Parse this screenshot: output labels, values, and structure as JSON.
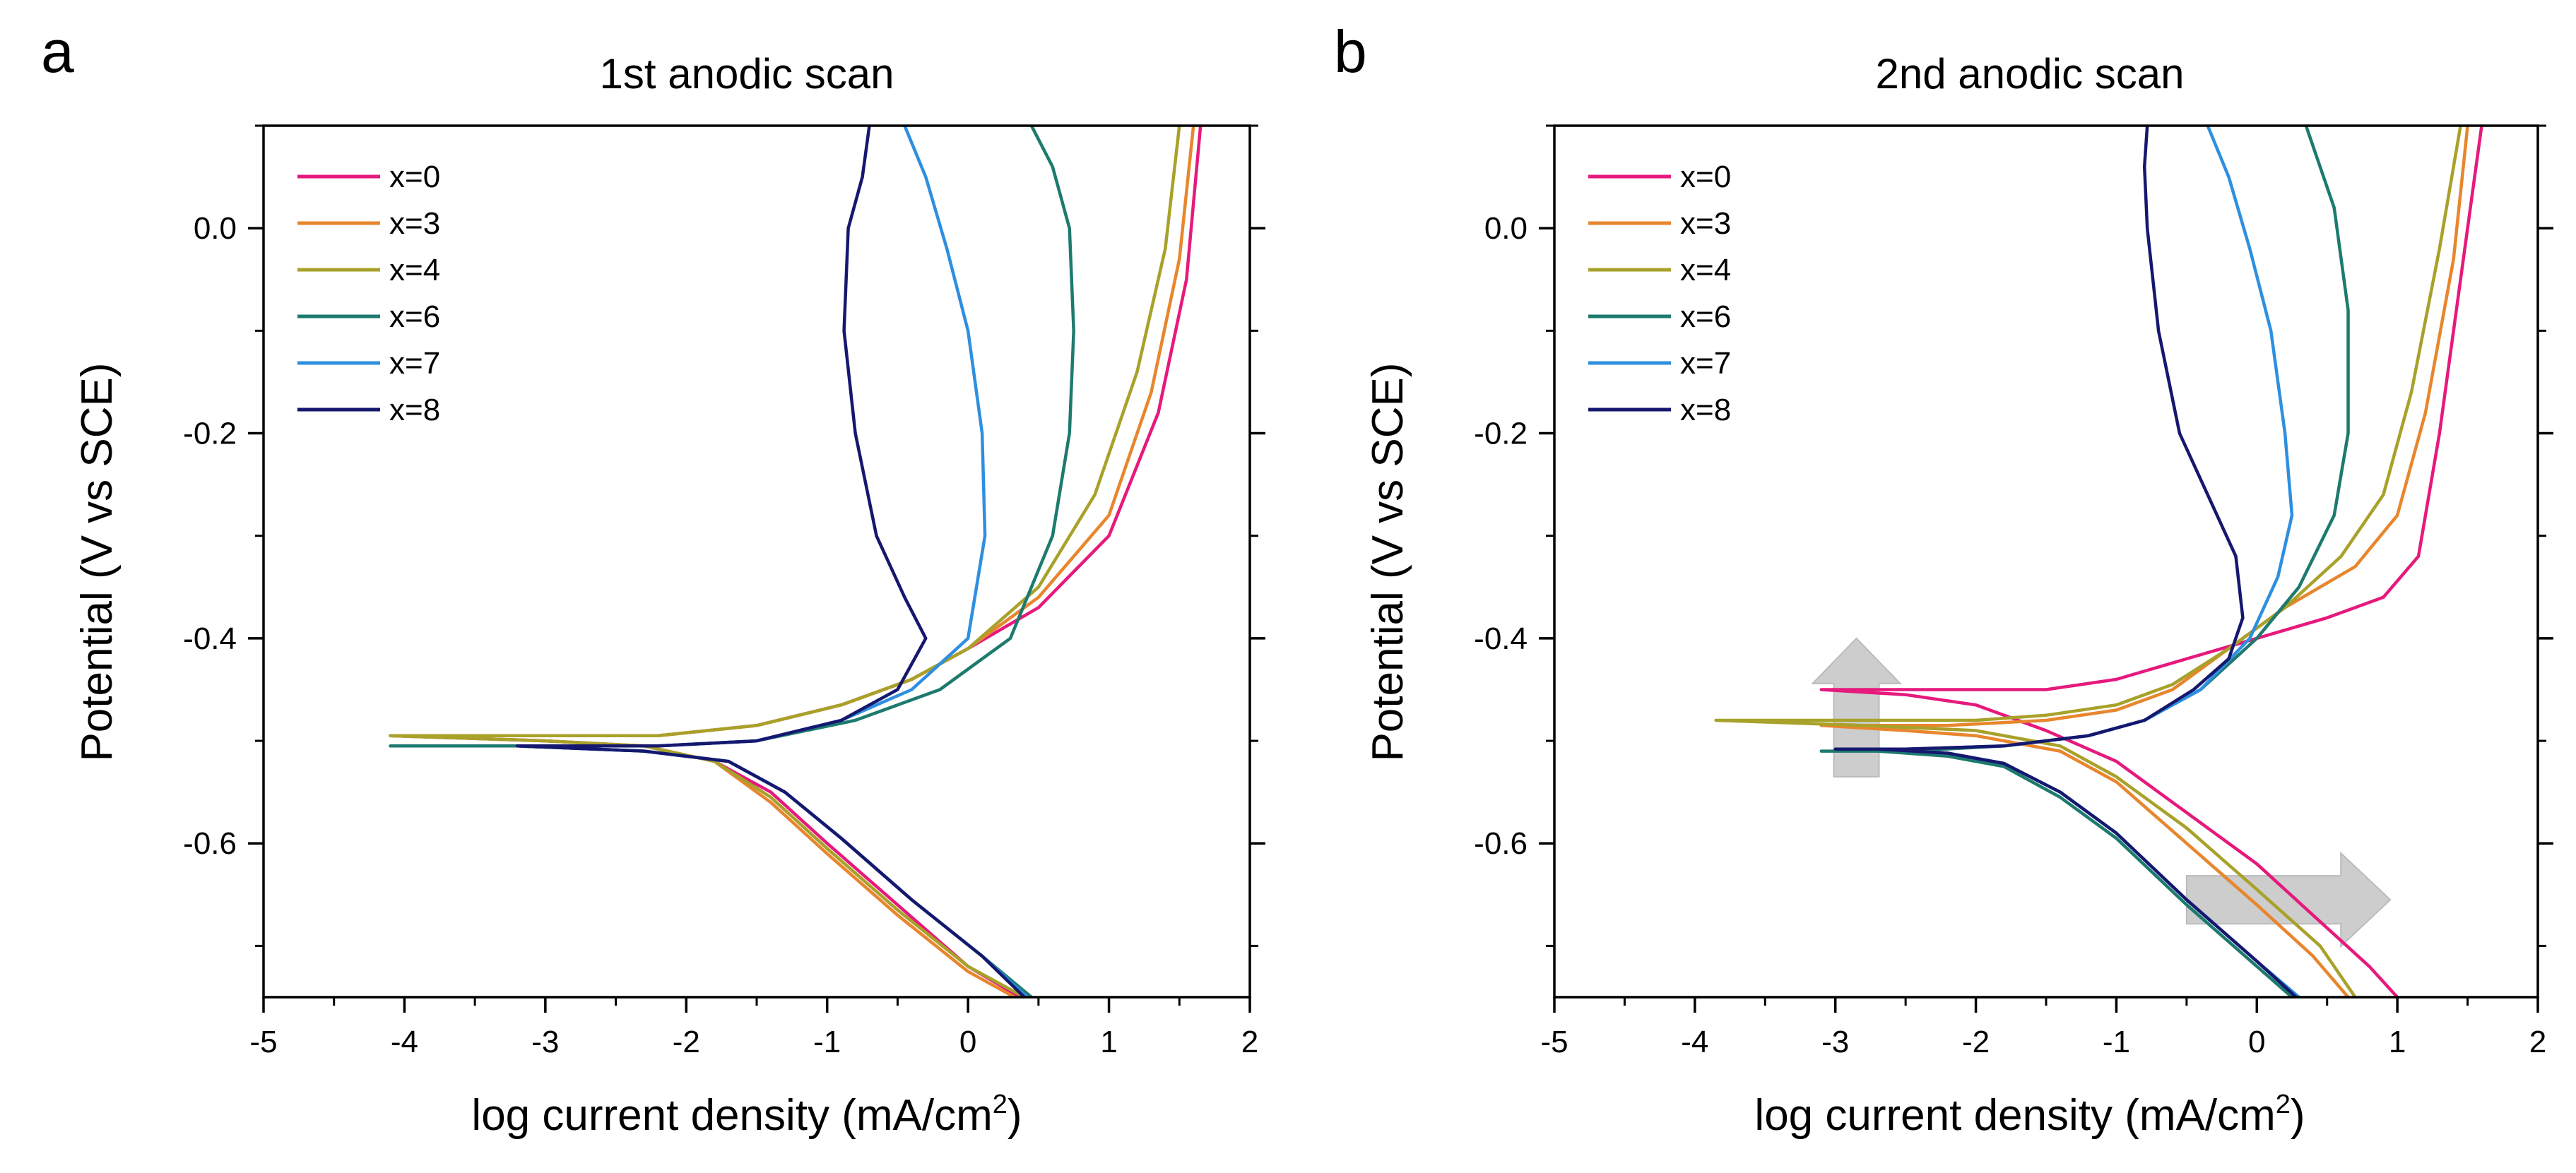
{
  "chart_data": [
    {
      "panel": "a",
      "type": "line",
      "title": "1st anodic scan",
      "xlabel": "log current density (mA/cm",
      "xlabel_sup": "2",
      "xlabel_end": ")",
      "ylabel": "Potential (V vs SCE)",
      "xlim": [
        -5,
        2
      ],
      "ylim": [
        -0.75,
        0.1
      ],
      "xticks": [
        -5,
        -4,
        -3,
        -2,
        -1,
        0,
        1,
        2
      ],
      "yticks": [
        -0.6,
        -0.4,
        -0.2,
        0.0
      ],
      "xtick_labels": [
        "-5",
        "-4",
        "-3",
        "-2",
        "-1",
        "0",
        "1",
        "2"
      ],
      "ytick_labels": [
        "-0.6",
        "-0.4",
        "-0.2",
        "0.0"
      ],
      "legend_position": "top-left",
      "series": [
        {
          "name": "x=0",
          "color": "#e6197d",
          "x": [
            0.37,
            0.0,
            -0.5,
            -1.0,
            -1.4,
            -1.8,
            -2.3,
            -3.0,
            -4.1,
            -3.0,
            -2.2,
            -1.5,
            -0.9,
            -0.4,
            0.0,
            0.5,
            1.0,
            1.35,
            1.55,
            1.65
          ],
          "y": [
            -0.75,
            -0.72,
            -0.66,
            -0.6,
            -0.55,
            -0.52,
            -0.505,
            -0.5,
            -0.495,
            -0.495,
            -0.495,
            -0.485,
            -0.465,
            -0.44,
            -0.41,
            -0.37,
            -0.3,
            -0.18,
            -0.05,
            0.1
          ]
        },
        {
          "name": "x=3",
          "color": "#e8862d",
          "x": [
            0.33,
            0.0,
            -0.5,
            -1.0,
            -1.4,
            -1.8,
            -2.3,
            -3.0,
            -4.1,
            -3.0,
            -2.2,
            -1.5,
            -0.9,
            -0.4,
            0.0,
            0.5,
            1.0,
            1.3,
            1.5,
            1.6
          ],
          "y": [
            -0.75,
            -0.725,
            -0.67,
            -0.61,
            -0.56,
            -0.52,
            -0.505,
            -0.5,
            -0.495,
            -0.495,
            -0.495,
            -0.485,
            -0.465,
            -0.44,
            -0.41,
            -0.36,
            -0.28,
            -0.16,
            -0.03,
            0.1
          ]
        },
        {
          "name": "x=4",
          "color": "#a8a12a",
          "x": [
            0.4,
            0.0,
            -0.5,
            -1.0,
            -1.4,
            -1.8,
            -2.3,
            -3.0,
            -4.1,
            -3.0,
            -2.2,
            -1.5,
            -0.9,
            -0.4,
            0.0,
            0.5,
            0.9,
            1.2,
            1.4,
            1.5
          ],
          "y": [
            -0.75,
            -0.72,
            -0.665,
            -0.605,
            -0.555,
            -0.52,
            -0.505,
            -0.5,
            -0.495,
            -0.495,
            -0.495,
            -0.485,
            -0.465,
            -0.44,
            -0.41,
            -0.35,
            -0.26,
            -0.14,
            -0.02,
            0.1
          ]
        },
        {
          "name": "x=6",
          "color": "#1d7a6e",
          "x": [
            0.45,
            0.1,
            -0.4,
            -0.9,
            -1.3,
            -1.7,
            -2.3,
            -3.2,
            -4.1,
            -3.0,
            -2.2,
            -1.5,
            -0.8,
            -0.2,
            0.3,
            0.6,
            0.72,
            0.75,
            0.72,
            0.6,
            0.45
          ],
          "y": [
            -0.75,
            -0.71,
            -0.655,
            -0.595,
            -0.55,
            -0.52,
            -0.51,
            -0.505,
            -0.505,
            -0.505,
            -0.505,
            -0.5,
            -0.48,
            -0.45,
            -0.4,
            -0.3,
            -0.2,
            -0.1,
            0.0,
            0.06,
            0.1
          ]
        },
        {
          "name": "x=7",
          "color": "#2e8fe0",
          "x": [
            0.42,
            0.1,
            -0.4,
            -0.9,
            -1.3,
            -1.7,
            -2.3,
            -3.2,
            -2.2,
            -1.5,
            -0.9,
            -0.4,
            0.0,
            0.12,
            0.1,
            0.0,
            -0.15,
            -0.3,
            -0.45
          ],
          "y": [
            -0.75,
            -0.71,
            -0.655,
            -0.595,
            -0.55,
            -0.52,
            -0.51,
            -0.505,
            -0.505,
            -0.5,
            -0.48,
            -0.45,
            -0.4,
            -0.3,
            -0.2,
            -0.1,
            -0.02,
            0.05,
            0.1
          ]
        },
        {
          "name": "x=8",
          "color": "#15186e",
          "x": [
            0.4,
            0.1,
            -0.4,
            -0.9,
            -1.3,
            -1.7,
            -2.3,
            -3.2,
            -2.2,
            -1.5,
            -0.9,
            -0.5,
            -0.3,
            -0.45,
            -0.65,
            -0.8,
            -0.88,
            -0.85,
            -0.75,
            -0.7
          ],
          "y": [
            -0.75,
            -0.71,
            -0.655,
            -0.595,
            -0.55,
            -0.52,
            -0.51,
            -0.505,
            -0.505,
            -0.5,
            -0.48,
            -0.45,
            -0.4,
            -0.36,
            -0.3,
            -0.2,
            -0.1,
            0.0,
            0.05,
            0.1
          ]
        }
      ]
    },
    {
      "panel": "b",
      "type": "line",
      "title": "2nd anodic scan",
      "xlabel": "log current density (mA/cm",
      "xlabel_sup": "2",
      "xlabel_end": ")",
      "ylabel": "Potential (V vs SCE)",
      "xlim": [
        -5,
        2
      ],
      "ylim": [
        -0.75,
        0.1
      ],
      "xticks": [
        -5,
        -4,
        -3,
        -2,
        -1,
        0,
        1,
        2
      ],
      "yticks": [
        -0.6,
        -0.4,
        -0.2,
        0.0
      ],
      "xtick_labels": [
        "-5",
        "-4",
        "-3",
        "-2",
        "-1",
        "0",
        "1",
        "2"
      ],
      "ytick_labels": [
        "-0.6",
        "-0.4",
        "-0.2",
        "0.0"
      ],
      "legend_position": "top-left",
      "annotations": [
        {
          "kind": "arrow-up",
          "x": -2.85,
          "y_from": -0.535,
          "y_to": -0.4,
          "color": "#c8c8c8"
        },
        {
          "kind": "arrow-right",
          "y": -0.655,
          "x_from": -0.5,
          "x_to": 0.95,
          "color": "#c8c8c8"
        }
      ],
      "series": [
        {
          "name": "x=0",
          "color": "#e6197d",
          "x": [
            1.0,
            0.8,
            0.4,
            0.0,
            -0.5,
            -1.0,
            -1.5,
            -2.0,
            -2.5,
            -3.1,
            -2.2,
            -1.5,
            -1.0,
            -0.5,
            0.0,
            0.5,
            0.9,
            1.15,
            1.3,
            1.45,
            1.55,
            1.6
          ],
          "y": [
            -0.75,
            -0.72,
            -0.67,
            -0.62,
            -0.57,
            -0.52,
            -0.49,
            -0.465,
            -0.455,
            -0.45,
            -0.45,
            -0.45,
            -0.44,
            -0.42,
            -0.4,
            -0.38,
            -0.36,
            -0.32,
            -0.2,
            -0.05,
            0.05,
            0.1
          ]
        },
        {
          "name": "x=3",
          "color": "#e8862d",
          "x": [
            0.65,
            0.4,
            0.0,
            -0.5,
            -1.0,
            -1.4,
            -2.0,
            -2.5,
            -3.1,
            -2.2,
            -1.5,
            -1.0,
            -0.6,
            -0.2,
            0.2,
            0.7,
            1.0,
            1.2,
            1.4,
            1.5
          ],
          "y": [
            -0.75,
            -0.71,
            -0.66,
            -0.6,
            -0.54,
            -0.51,
            -0.495,
            -0.49,
            -0.485,
            -0.485,
            -0.48,
            -0.47,
            -0.45,
            -0.41,
            -0.37,
            -0.33,
            -0.28,
            -0.18,
            -0.03,
            0.1
          ]
        },
        {
          "name": "x=4",
          "color": "#a8a12a",
          "x": [
            0.7,
            0.45,
            0.0,
            -0.5,
            -1.0,
            -1.4,
            -2.0,
            -2.8,
            -3.85,
            -2.8,
            -2.0,
            -1.5,
            -1.0,
            -0.6,
            -0.2,
            0.2,
            0.6,
            0.9,
            1.1,
            1.3,
            1.45
          ],
          "y": [
            -0.75,
            -0.7,
            -0.645,
            -0.585,
            -0.535,
            -0.505,
            -0.49,
            -0.485,
            -0.48,
            -0.48,
            -0.48,
            -0.475,
            -0.465,
            -0.445,
            -0.41,
            -0.37,
            -0.32,
            -0.26,
            -0.16,
            -0.02,
            0.1
          ]
        },
        {
          "name": "x=6",
          "color": "#1d7a6e",
          "x": [
            0.25,
            0.0,
            -0.5,
            -1.0,
            -1.4,
            -1.8,
            -2.2,
            -2.7,
            -3.1,
            -2.5,
            -1.8,
            -1.2,
            -0.8,
            -0.4,
            0.0,
            0.3,
            0.55,
            0.65,
            0.65,
            0.55,
            0.4,
            0.35
          ],
          "y": [
            -0.75,
            -0.72,
            -0.66,
            -0.595,
            -0.555,
            -0.525,
            -0.515,
            -0.51,
            -0.51,
            -0.51,
            -0.505,
            -0.495,
            -0.48,
            -0.45,
            -0.4,
            -0.35,
            -0.28,
            -0.2,
            -0.08,
            0.02,
            0.08,
            0.1
          ]
        },
        {
          "name": "x=7",
          "color": "#2e8fe0",
          "x": [
            0.3,
            0.0,
            -0.5,
            -1.0,
            -1.4,
            -1.8,
            -2.2,
            -2.7,
            -3.0,
            -2.5,
            -1.8,
            -1.2,
            -0.8,
            -0.4,
            -0.05,
            0.15,
            0.25,
            0.2,
            0.1,
            -0.05,
            -0.2,
            -0.35
          ],
          "y": [
            -0.75,
            -0.715,
            -0.655,
            -0.59,
            -0.55,
            -0.522,
            -0.512,
            -0.508,
            -0.508,
            -0.508,
            -0.505,
            -0.495,
            -0.48,
            -0.45,
            -0.4,
            -0.34,
            -0.28,
            -0.2,
            -0.1,
            -0.02,
            0.05,
            0.1
          ]
        },
        {
          "name": "x=8",
          "color": "#15186e",
          "x": [
            0.28,
            0.0,
            -0.5,
            -1.0,
            -1.4,
            -1.8,
            -2.2,
            -2.7,
            -3.0,
            -2.5,
            -1.8,
            -1.2,
            -0.8,
            -0.45,
            -0.2,
            -0.1,
            -0.15,
            -0.35,
            -0.55,
            -0.7,
            -0.78,
            -0.8,
            -0.78
          ],
          "y": [
            -0.75,
            -0.715,
            -0.655,
            -0.59,
            -0.55,
            -0.522,
            -0.512,
            -0.508,
            -0.508,
            -0.508,
            -0.505,
            -0.495,
            -0.48,
            -0.45,
            -0.42,
            -0.38,
            -0.32,
            -0.26,
            -0.2,
            -0.1,
            0.0,
            0.06,
            0.1
          ]
        }
      ]
    }
  ]
}
